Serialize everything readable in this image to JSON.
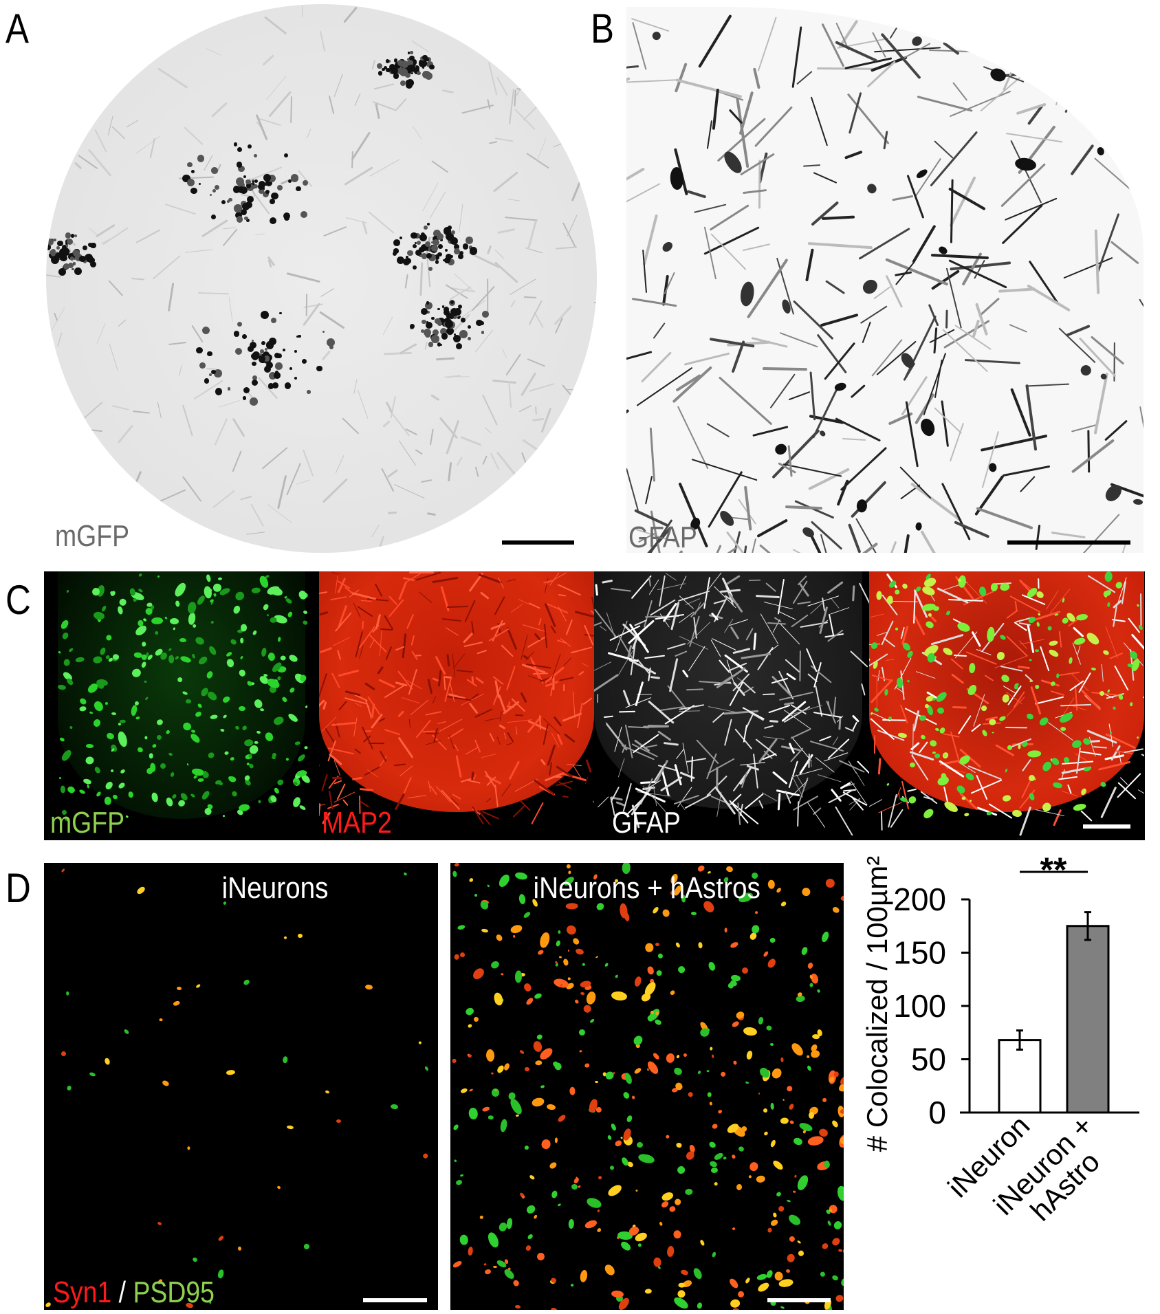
{
  "panels": {
    "A": {
      "letter": "A",
      "label": "mGFP"
    },
    "B": {
      "letter": "B",
      "label": "GFAP"
    },
    "C": {
      "letter": "C",
      "labels": [
        {
          "text": "mGFP",
          "color": "#8fd14f"
        },
        {
          "text": "MAP2",
          "color": "#ff1a1a"
        },
        {
          "text": "GFAP",
          "color": "#ffffff"
        }
      ]
    },
    "D": {
      "letter": "D",
      "titles": [
        "iNeurons",
        "iNeurons + hAstros"
      ],
      "stain_red": "Syn1",
      "stain_sep": "/",
      "stain_green": "PSD95",
      "stain_red_color": "#ff1a1a",
      "stain_green_color": "#8fd14f"
    }
  },
  "chart_data": {
    "type": "bar",
    "categories": [
      "iNeuron",
      "iNeuron + hAstro"
    ],
    "values": [
      68,
      175
    ],
    "error": [
      9,
      13
    ],
    "bar_colors": [
      "#ffffff",
      "#808080"
    ],
    "ylabel": "# Colocalized / 100µm²",
    "ylim": [
      0,
      200
    ],
    "yticks": [
      0,
      50,
      100,
      150,
      200
    ],
    "significance": "**",
    "grid": false
  }
}
